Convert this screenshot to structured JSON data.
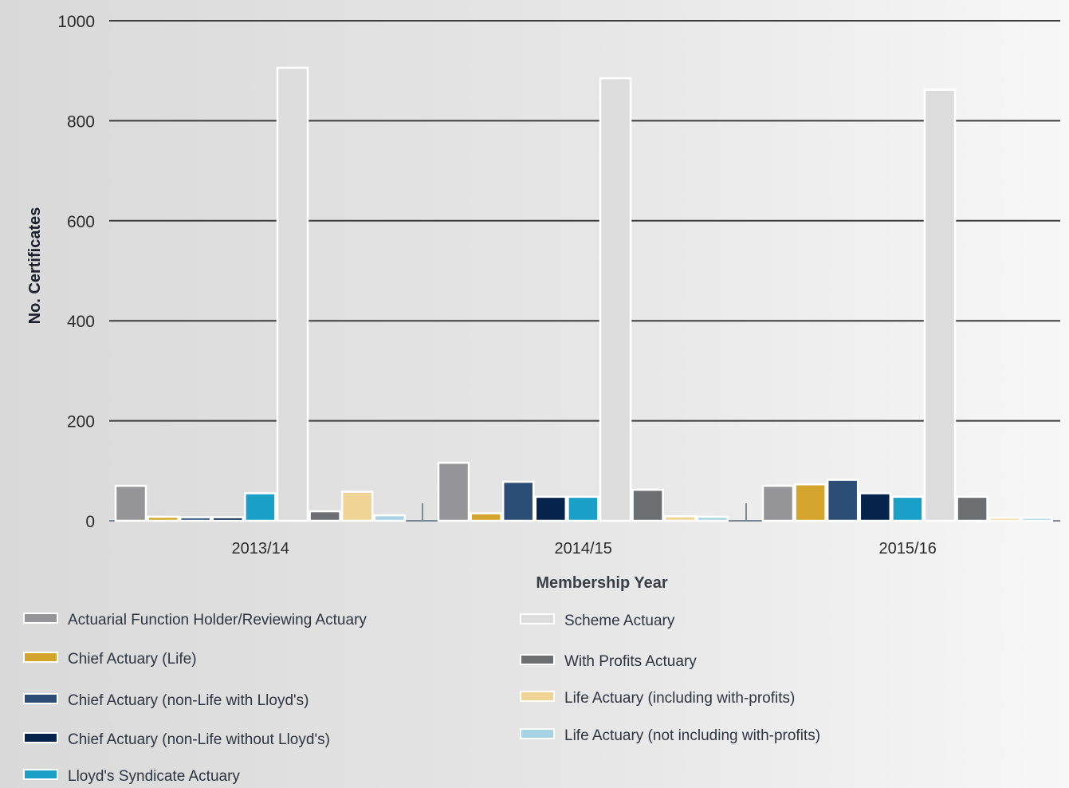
{
  "chart_data": {
    "type": "bar",
    "title": "",
    "xlabel": "Membership Year",
    "ylabel": "No. Certificates",
    "ylim": [
      0,
      1000
    ],
    "yticks": [
      0,
      200,
      400,
      600,
      800,
      1000
    ],
    "grid": true,
    "legend_position": "bottom",
    "categories": [
      "2013/14",
      "2014/15",
      "2015/16"
    ],
    "series": [
      {
        "name": "Actuarial Function Holder/Reviewing Actuary",
        "color": "#959597",
        "values": [
          70,
          116,
          70
        ]
      },
      {
        "name": "Chief Actuary (Life)",
        "color": "#d4a52c",
        "values": [
          8,
          15,
          73
        ]
      },
      {
        "name": "Chief Actuary (non-Life with Lloyd's)",
        "color": "#2c4d76",
        "values": [
          7,
          78,
          82
        ]
      },
      {
        "name": "Chief Actuary (non-Life without Lloyd's)",
        "color": "#05234b",
        "values": [
          7,
          48,
          55
        ]
      },
      {
        "name": "Lloyd's Syndicate Actuary",
        "color": "#1aa0c6",
        "values": [
          55,
          48,
          48
        ]
      },
      {
        "name": "Scheme Actuary",
        "color": "#dcdcdc",
        "values": [
          906,
          885,
          862
        ]
      },
      {
        "name": "With Profits Actuary",
        "color": "#6d6e71",
        "values": [
          19,
          62,
          48
        ]
      },
      {
        "name": "Life Actuary (including with-profits)",
        "color": "#efd496",
        "values": [
          58,
          9,
          6
        ]
      },
      {
        "name": "Life Actuary (not including with-profits)",
        "color": "#a7d2e6",
        "values": [
          11,
          8,
          6
        ]
      }
    ]
  }
}
